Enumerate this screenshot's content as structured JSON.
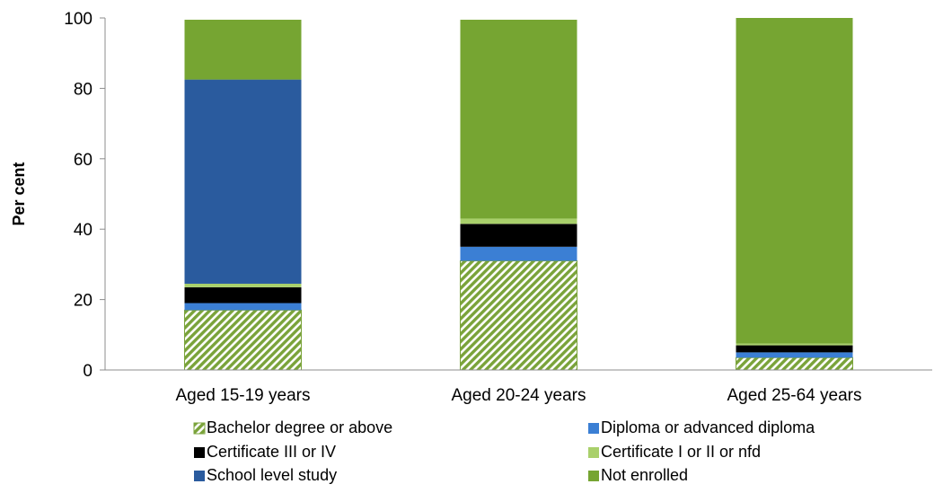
{
  "chart_data": {
    "type": "bar",
    "stacked": true,
    "title": "",
    "xlabel": "",
    "ylabel": "Per cent",
    "ylim": [
      0,
      100
    ],
    "yticks": [
      0,
      20,
      40,
      60,
      80,
      100
    ],
    "grid": false,
    "legend_position": "bottom",
    "categories": [
      "Aged 15-19 years",
      "Aged 20-24 years",
      "Aged 25-64 years"
    ],
    "series": [
      {
        "name": "Bachelor degree or above",
        "color": "#7aa33a",
        "pattern": "diagonal-hatch",
        "values": [
          17,
          31,
          3.5
        ]
      },
      {
        "name": "Diploma or advanced diploma",
        "color": "#3b7fd4",
        "values": [
          2,
          4,
          1.5
        ]
      },
      {
        "name": "Certificate III or IV",
        "color": "#000000",
        "values": [
          4.5,
          6.5,
          2
        ]
      },
      {
        "name": "Certificate I or II or nfd",
        "color": "#a9d06b",
        "values": [
          1,
          1.5,
          0.5
        ]
      },
      {
        "name": "School level study",
        "color": "#2a5b9e",
        "values": [
          58,
          0,
          0
        ]
      },
      {
        "name": "Not enrolled",
        "color": "#76a532",
        "values": [
          17,
          56.5,
          92.5
        ]
      }
    ]
  }
}
